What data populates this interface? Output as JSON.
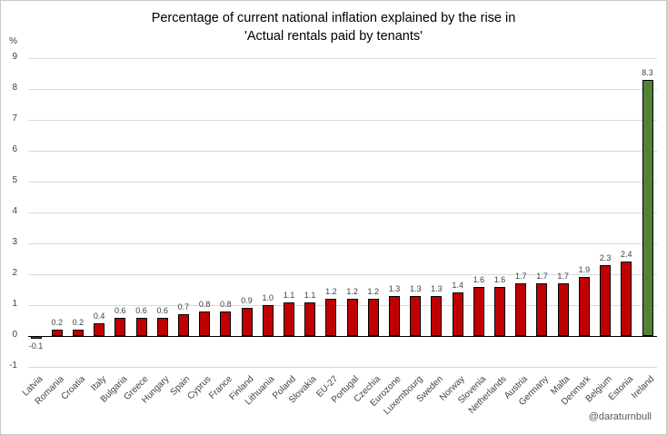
{
  "title": {
    "line1": "Percentage of current national inflation explained by the rise in",
    "line2": "'Actual rentals paid by tenants'"
  },
  "attribution": "@daraturnbull",
  "colors": {
    "bar_default": "#C00000",
    "bar_highlight": "#538135",
    "bar_border": "#000000",
    "gridline": "#D9D9D9",
    "axis_line": "#000000",
    "tick_text": "#404040",
    "value_text": "#404040",
    "attribution_text": "#595959"
  },
  "chart_data": {
    "type": "bar",
    "title": "Percentage of current national inflation explained by the rise in 'Actual rentals paid by tenants'",
    "xlabel": "",
    "ylabel": "%",
    "ylim": [
      -1,
      9
    ],
    "ytick_interval": 1,
    "grid": true,
    "legend": "none",
    "highlight_category": "Ireland",
    "categories": [
      "Latvia",
      "Romania",
      "Croatia",
      "Italy",
      "Bulgaria",
      "Greece",
      "Hungary",
      "Spain",
      "Cyprus",
      "France",
      "Finland",
      "Lithuania",
      "Poland",
      "Slovakia",
      "EU-27",
      "Portugal",
      "Czechia",
      "Eurozone",
      "Luxembourg",
      "Sweden",
      "Norway",
      "Slovenia",
      "Netherlands",
      "Austria",
      "Germany",
      "Malta",
      "Denmark",
      "Belgium",
      "Estonia",
      "Ireland"
    ],
    "values": [
      -0.1,
      0.2,
      0.2,
      0.4,
      0.6,
      0.6,
      0.6,
      0.7,
      0.8,
      0.8,
      0.9,
      1.0,
      1.1,
      1.1,
      1.2,
      1.2,
      1.2,
      1.3,
      1.3,
      1.3,
      1.4,
      1.6,
      1.6,
      1.7,
      1.7,
      1.7,
      1.9,
      2.3,
      2.4,
      8.3
    ]
  }
}
